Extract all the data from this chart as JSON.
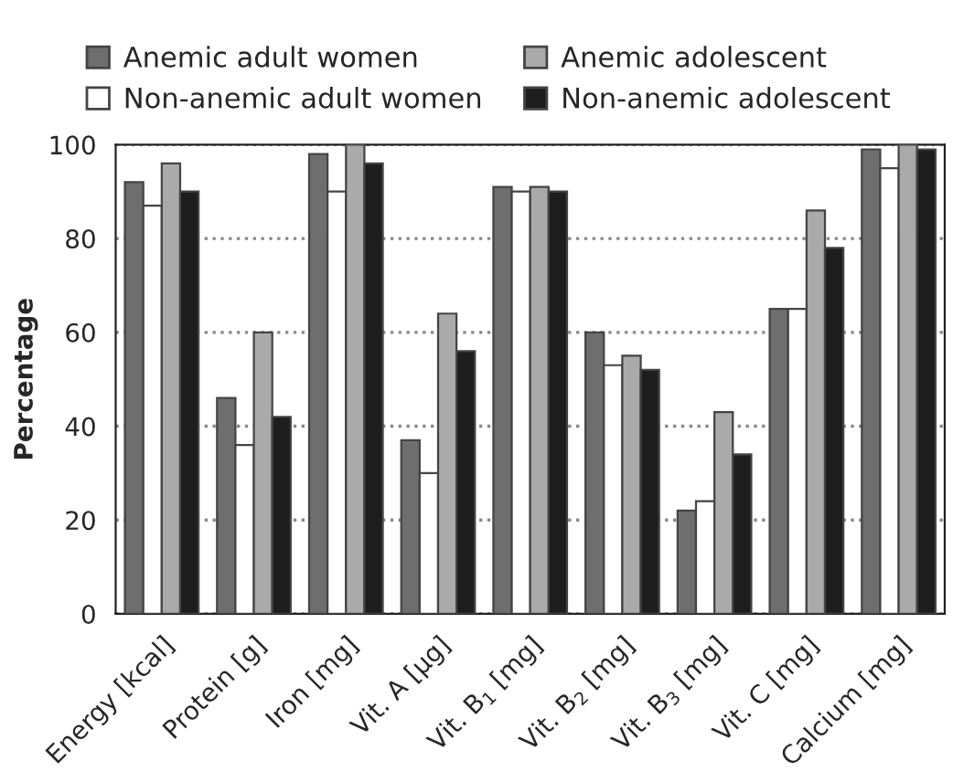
{
  "chart_data": {
    "type": "bar",
    "ylabel": "Percentage",
    "categories": [
      "Energy [kcal]",
      "Protein [g]",
      "Iron [mg]",
      "Vit. A [µg]",
      "Vit. B$_{1}$ [mg]",
      "Vit. B$_{2}$ [mg]",
      "Vit. B$_{3}$ [mg]",
      "Vit. C [mg]",
      "Calcium [mg]"
    ],
    "series": [
      {
        "name": "Anemic adult women",
        "color": "#6e6e6e",
        "values": [
          92,
          46,
          98,
          37,
          91,
          60,
          22,
          65,
          99
        ]
      },
      {
        "name": "Non-anemic adult women",
        "color": "#ffffff",
        "values": [
          87,
          36,
          90,
          30,
          90,
          53,
          24,
          65,
          95
        ]
      },
      {
        "name": "Anemic adolescent",
        "color": "#aaaaaa",
        "values": [
          96,
          60,
          100,
          64,
          91,
          55,
          43,
          86,
          100
        ]
      },
      {
        "name": "Non-anemic adolescent",
        "color": "#1e1e1e",
        "values": [
          90,
          42,
          96,
          56,
          90,
          52,
          34,
          78,
          99
        ]
      }
    ],
    "ylim": [
      0,
      100
    ],
    "yticks": [
      0,
      20,
      40,
      60,
      80,
      100
    ],
    "grid": "y",
    "legend": "top"
  }
}
